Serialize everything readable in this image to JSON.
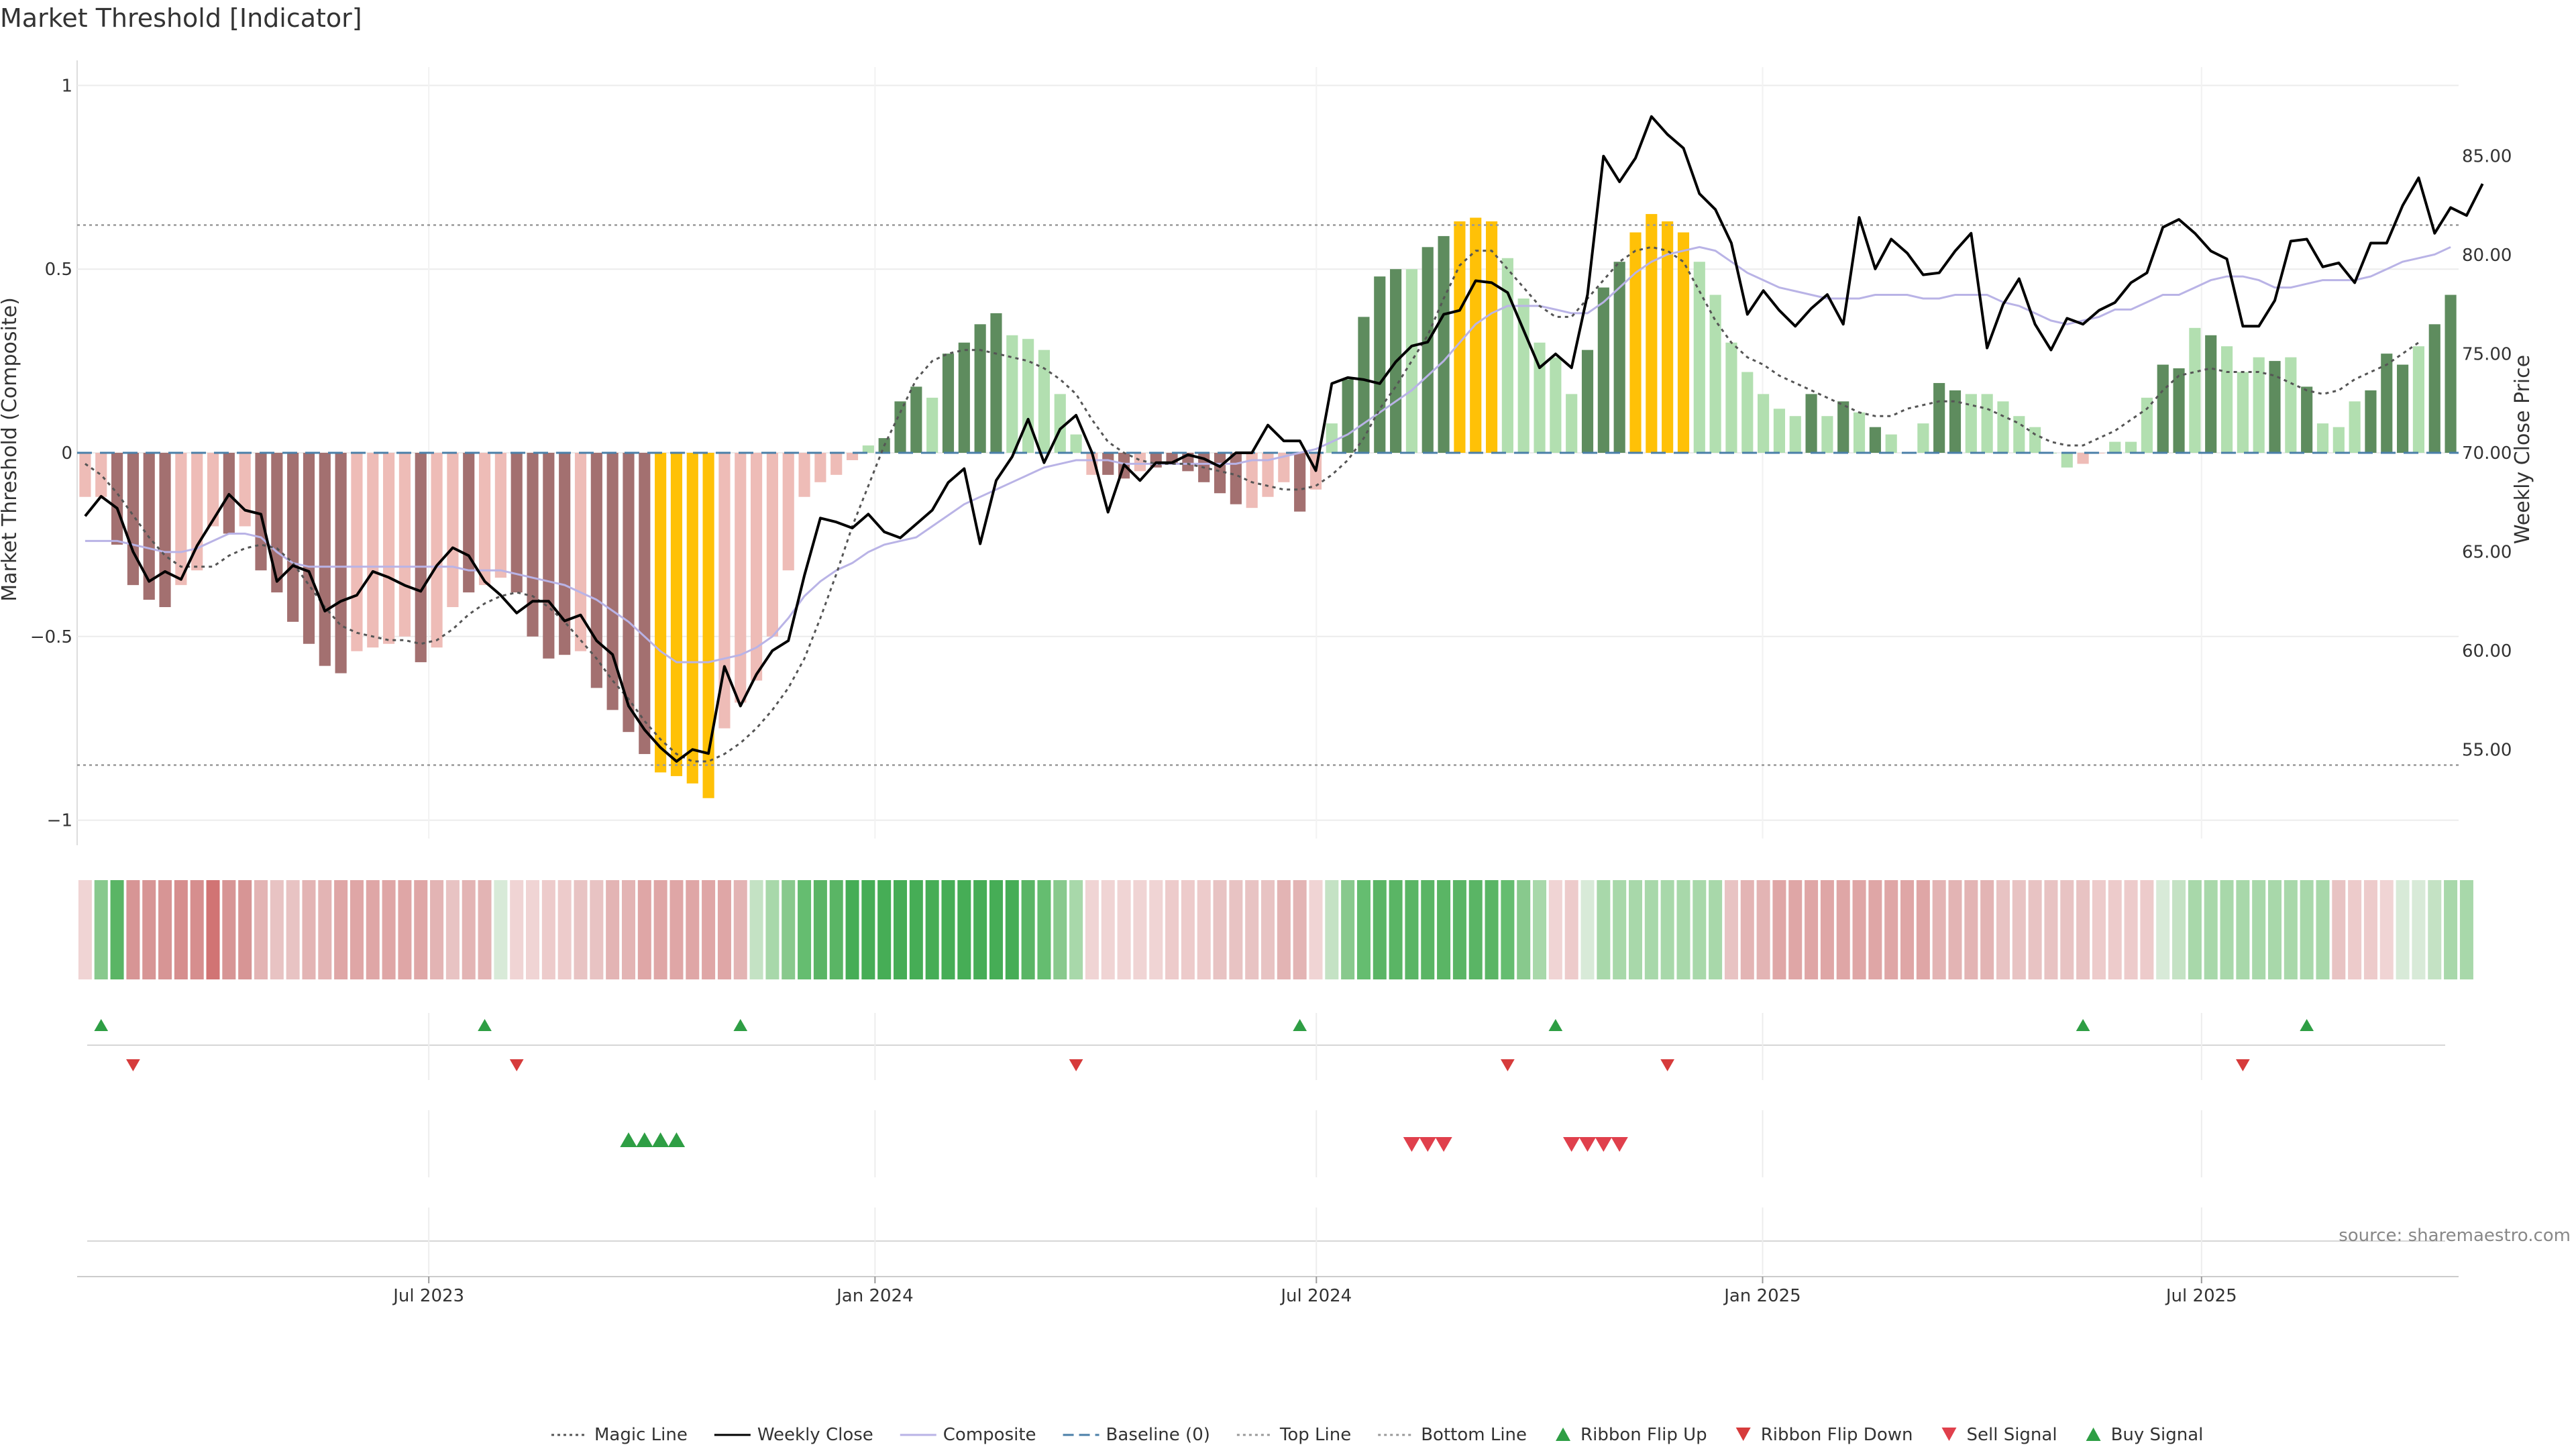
{
  "chart_data": {
    "type": "bar+line",
    "title": "Market Threshold [Indicator]",
    "ylabel_left": "Market Threshold (Composite)",
    "ylabel_right": "Weekly Close Price",
    "source": "source: sharemaestro.com",
    "left_axis": {
      "ylim": [
        -1.05,
        1.05
      ],
      "ticks": [
        1,
        0.5,
        0,
        -0.5,
        -1
      ],
      "tick_labels": [
        "1",
        "0.5",
        "0",
        "−0.5",
        "−1"
      ]
    },
    "right_axis": {
      "ylim": [
        50.5,
        89.5
      ],
      "ticks": [
        85,
        80,
        75,
        70,
        65,
        60,
        55
      ],
      "tick_labels": [
        "85.00",
        "80.00",
        "75.00",
        "70.00",
        "65.00",
        "60.00",
        "55.00"
      ]
    },
    "x_axis": {
      "start": "2023-02-06",
      "end": "2025-10-15",
      "ticks": [
        {
          "label": "Jul 2023",
          "date": "2023-07-01"
        },
        {
          "label": "Jan 2024",
          "date": "2024-01-01"
        },
        {
          "label": "Jul 2024",
          "date": "2024-07-01"
        },
        {
          "label": "Jan 2025",
          "date": "2025-01-01"
        },
        {
          "label": "Jul 2025",
          "date": "2025-07-01"
        }
      ]
    },
    "top_line": 0.62,
    "bottom_line": -0.85,
    "baseline": 0,
    "composite_bars": [
      -0.12,
      -0.12,
      -0.25,
      -0.36,
      -0.4,
      -0.42,
      -0.36,
      -0.32,
      -0.2,
      -0.22,
      -0.2,
      -0.32,
      -0.38,
      -0.46,
      -0.52,
      -0.58,
      -0.6,
      -0.54,
      -0.53,
      -0.52,
      -0.5,
      -0.57,
      -0.53,
      -0.42,
      -0.38,
      -0.36,
      -0.34,
      -0.38,
      -0.5,
      -0.56,
      -0.55,
      -0.54,
      -0.64,
      -0.7,
      -0.76,
      -0.82,
      -0.87,
      -0.88,
      -0.9,
      -0.94,
      -0.75,
      -0.68,
      -0.62,
      -0.5,
      -0.32,
      -0.12,
      -0.08,
      -0.06,
      -0.02,
      0.02,
      0.04,
      0.14,
      0.18,
      0.15,
      0.27,
      0.3,
      0.35,
      0.38,
      0.32,
      0.31,
      0.28,
      0.16,
      0.05,
      -0.06,
      -0.06,
      -0.07,
      -0.05,
      -0.04,
      -0.03,
      -0.05,
      -0.08,
      -0.11,
      -0.14,
      -0.15,
      -0.12,
      -0.08,
      -0.16,
      -0.1,
      0.08,
      0.2,
      0.37,
      0.48,
      0.5,
      0.5,
      0.56,
      0.59,
      0.63,
      0.64,
      0.63,
      0.53,
      0.42,
      0.3,
      0.26,
      0.16,
      0.28,
      0.45,
      0.52,
      0.6,
      0.65,
      0.63,
      0.6,
      0.52,
      0.43,
      0.3,
      0.22,
      0.16,
      0.12,
      0.1,
      0.16,
      0.1,
      0.14,
      0.11,
      0.07,
      0.05,
      0.0,
      0.08,
      0.19,
      0.17,
      0.16,
      0.16,
      0.14,
      0.1,
      0.07,
      0.0,
      -0.04,
      -0.03,
      0.0,
      0.03,
      0.03,
      0.15,
      0.24,
      0.23,
      0.34,
      0.32,
      0.29,
      0.22,
      0.26,
      0.25,
      0.26,
      0.18,
      0.08,
      0.07,
      0.14,
      0.17,
      0.27,
      0.24,
      0.29,
      0.35,
      0.43
    ],
    "bar_colors": [
      "#eebcb7",
      "#eebcb7",
      "#a37070",
      "#a37070",
      "#a37070",
      "#a37070",
      "#eebcb7",
      "#eebcb7",
      "#eebcb7",
      "#a37070",
      "#eebcb7",
      "#a37070",
      "#a37070",
      "#a37070",
      "#a37070",
      "#a37070",
      "#a37070",
      "#eebcb7",
      "#eebcb7",
      "#eebcb7",
      "#eebcb7",
      "#a37070",
      "#eebcb7",
      "#eebcb7",
      "#a37070",
      "#eebcb7",
      "#eebcb7",
      "#a37070",
      "#a37070",
      "#a37070",
      "#a37070",
      "#eebcb7",
      "#a37070",
      "#a37070",
      "#a37070",
      "#a37070",
      "#ffc107",
      "#ffc107",
      "#ffc107",
      "#ffc107",
      "#eebcb7",
      "#eebcb7",
      "#eebcb7",
      "#eebcb7",
      "#eebcb7",
      "#eebcb7",
      "#eebcb7",
      "#eebcb7",
      "#eebcb7",
      "#b2dfb0",
      "#5e8c5e",
      "#5e8c5e",
      "#5e8c5e",
      "#b2dfb0",
      "#5e8c5e",
      "#5e8c5e",
      "#5e8c5e",
      "#5e8c5e",
      "#b2dfb0",
      "#b2dfb0",
      "#b2dfb0",
      "#b2dfb0",
      "#b2dfb0",
      "#eebcb7",
      "#a37070",
      "#a37070",
      "#eebcb7",
      "#a37070",
      "#a37070",
      "#a37070",
      "#a37070",
      "#a37070",
      "#a37070",
      "#eebcb7",
      "#eebcb7",
      "#eebcb7",
      "#a37070",
      "#eebcb7",
      "#b2dfb0",
      "#5e8c5e",
      "#5e8c5e",
      "#5e8c5e",
      "#5e8c5e",
      "#b2dfb0",
      "#5e8c5e",
      "#5e8c5e",
      "#ffc107",
      "#ffc107",
      "#ffc107",
      "#b2dfb0",
      "#b2dfb0",
      "#b2dfb0",
      "#b2dfb0",
      "#b2dfb0",
      "#5e8c5e",
      "#5e8c5e",
      "#5e8c5e",
      "#ffc107",
      "#ffc107",
      "#ffc107",
      "#ffc107",
      "#b2dfb0",
      "#b2dfb0",
      "#b2dfb0",
      "#b2dfb0",
      "#b2dfb0",
      "#b2dfb0",
      "#b2dfb0",
      "#5e8c5e",
      "#b2dfb0",
      "#5e8c5e",
      "#b2dfb0",
      "#5e8c5e",
      "#b2dfb0",
      "#b2dfb0",
      "#b2dfb0",
      "#5e8c5e",
      "#5e8c5e",
      "#b2dfb0",
      "#b2dfb0",
      "#b2dfb0",
      "#b2dfb0",
      "#b2dfb0",
      "#b2dfb0",
      "#b2dfb0",
      "#eebcb7",
      "#eebcb7",
      "#b2dfb0",
      "#b2dfb0",
      "#b2dfb0",
      "#5e8c5e",
      "#5e8c5e",
      "#b2dfb0",
      "#5e8c5e",
      "#b2dfb0",
      "#b2dfb0",
      "#b2dfb0",
      "#5e8c5e",
      "#b2dfb0",
      "#5e8c5e",
      "#b2dfb0",
      "#b2dfb0",
      "#b2dfb0",
      "#5e8c5e",
      "#5e8c5e",
      "#5e8c5e",
      "#b2dfb0",
      "#5e8c5e",
      "#5e8c5e",
      "#5e8c5e"
    ],
    "composite_line": [
      -0.24,
      -0.24,
      -0.24,
      -0.25,
      -0.26,
      -0.27,
      -0.27,
      -0.26,
      -0.24,
      -0.22,
      -0.22,
      -0.23,
      -0.27,
      -0.3,
      -0.31,
      -0.31,
      -0.31,
      -0.31,
      -0.31,
      -0.31,
      -0.31,
      -0.31,
      -0.31,
      -0.31,
      -0.32,
      -0.32,
      -0.32,
      -0.33,
      -0.34,
      -0.35,
      -0.36,
      -0.38,
      -0.4,
      -0.43,
      -0.46,
      -0.5,
      -0.54,
      -0.57,
      -0.57,
      -0.57,
      -0.56,
      -0.55,
      -0.53,
      -0.5,
      -0.45,
      -0.39,
      -0.35,
      -0.32,
      -0.3,
      -0.27,
      -0.25,
      -0.24,
      -0.23,
      -0.2,
      -0.17,
      -0.14,
      -0.12,
      -0.1,
      -0.08,
      -0.06,
      -0.04,
      -0.03,
      -0.02,
      -0.02,
      -0.02,
      -0.03,
      -0.03,
      -0.03,
      -0.03,
      -0.03,
      -0.03,
      -0.03,
      -0.03,
      -0.02,
      -0.02,
      -0.01,
      0.0,
      0.01,
      0.03,
      0.05,
      0.08,
      0.11,
      0.14,
      0.17,
      0.21,
      0.25,
      0.3,
      0.35,
      0.38,
      0.4,
      0.4,
      0.4,
      0.39,
      0.38,
      0.38,
      0.41,
      0.45,
      0.49,
      0.52,
      0.54,
      0.55,
      0.56,
      0.55,
      0.52,
      0.49,
      0.47,
      0.45,
      0.44,
      0.43,
      0.42,
      0.42,
      0.42,
      0.43,
      0.43,
      0.43,
      0.42,
      0.42,
      0.43,
      0.43,
      0.43,
      0.41,
      0.4,
      0.38,
      0.36,
      0.35,
      0.36,
      0.37,
      0.39,
      0.39,
      0.41,
      0.43,
      0.43,
      0.45,
      0.47,
      0.48,
      0.48,
      0.47,
      0.45,
      0.45,
      0.46,
      0.47,
      0.47,
      0.47,
      0.48,
      0.5,
      0.52,
      0.53,
      0.54,
      0.56
    ],
    "magic_line": [
      -0.03,
      -0.06,
      -0.11,
      -0.17,
      -0.23,
      -0.28,
      -0.31,
      -0.31,
      -0.31,
      -0.28,
      -0.26,
      -0.25,
      -0.26,
      -0.3,
      -0.36,
      -0.42,
      -0.47,
      -0.49,
      -0.5,
      -0.51,
      -0.51,
      -0.52,
      -0.51,
      -0.48,
      -0.44,
      -0.41,
      -0.39,
      -0.38,
      -0.39,
      -0.42,
      -0.46,
      -0.51,
      -0.56,
      -0.62,
      -0.67,
      -0.73,
      -0.78,
      -0.82,
      -0.84,
      -0.84,
      -0.82,
      -0.79,
      -0.75,
      -0.7,
      -0.64,
      -0.56,
      -0.45,
      -0.33,
      -0.2,
      -0.09,
      0.02,
      0.11,
      0.2,
      0.25,
      0.27,
      0.28,
      0.28,
      0.27,
      0.26,
      0.25,
      0.23,
      0.2,
      0.16,
      0.09,
      0.03,
      0.0,
      -0.02,
      -0.03,
      -0.03,
      -0.03,
      -0.04,
      -0.05,
      -0.06,
      -0.08,
      -0.09,
      -0.1,
      -0.1,
      -0.09,
      -0.06,
      -0.02,
      0.04,
      0.12,
      0.18,
      0.25,
      0.32,
      0.42,
      0.51,
      0.55,
      0.55,
      0.5,
      0.45,
      0.4,
      0.37,
      0.37,
      0.42,
      0.47,
      0.52,
      0.55,
      0.56,
      0.55,
      0.52,
      0.44,
      0.36,
      0.3,
      0.26,
      0.24,
      0.21,
      0.19,
      0.17,
      0.15,
      0.13,
      0.11,
      0.1,
      0.1,
      0.12,
      0.13,
      0.14,
      0.14,
      0.13,
      0.12,
      0.1,
      0.08,
      0.05,
      0.03,
      0.02,
      0.02,
      0.04,
      0.06,
      0.09,
      0.12,
      0.17,
      0.21,
      0.22,
      0.23,
      0.22,
      0.22,
      0.22,
      0.21,
      0.19,
      0.17,
      0.16,
      0.17,
      0.2,
      0.22,
      0.24,
      0.27,
      0.3
    ]
  },
  "weekly_close": [
    66.8,
    67.8,
    67.2,
    65.0,
    63.5,
    64.0,
    63.6,
    65.3,
    66.6,
    67.9,
    67.1,
    66.9,
    63.5,
    64.3,
    64.0,
    62.0,
    62.5,
    62.8,
    64.0,
    63.7,
    63.3,
    63.0,
    64.3,
    65.2,
    64.8,
    63.5,
    62.8,
    61.9,
    62.5,
    62.5,
    61.5,
    61.8,
    60.5,
    59.8,
    57.2,
    56.0,
    55.1,
    54.4,
    55.0,
    54.8,
    59.2,
    57.2,
    58.8,
    60.0,
    60.5,
    63.8,
    66.7,
    66.5,
    66.2,
    66.9,
    66.0,
    65.7,
    66.4,
    67.1,
    68.5,
    69.2,
    65.4,
    68.6,
    69.8,
    71.7,
    69.5,
    71.2,
    71.9,
    70.0,
    67.0,
    69.4,
    68.6,
    69.5,
    69.5,
    69.9,
    69.7,
    69.3,
    70.0,
    70.0,
    71.4,
    70.6,
    70.6,
    69.1,
    73.5,
    73.8,
    73.7,
    73.5,
    74.6,
    75.4,
    75.6,
    77.0,
    77.2,
    78.7,
    78.6,
    78.1,
    76.2,
    74.3,
    75.0,
    74.3,
    78.0,
    85.0,
    83.7,
    84.9,
    87.0,
    86.1,
    85.4,
    83.1,
    82.3,
    80.6,
    77.0,
    78.2,
    77.2,
    76.4,
    77.3,
    78.0,
    76.5,
    81.9,
    79.3,
    80.8,
    80.1,
    79.0,
    79.1,
    80.2,
    81.1,
    75.3,
    77.5,
    78.8,
    76.5,
    75.2,
    76.8,
    76.5,
    77.2,
    77.6,
    78.6,
    79.1,
    81.4,
    81.8,
    81.1,
    80.2,
    79.8,
    76.4,
    76.4,
    77.7,
    80.7,
    80.8,
    79.4,
    79.6,
    78.6,
    80.6,
    80.6,
    82.5,
    83.9,
    81.1,
    82.4,
    82.0,
    83.6
  ],
  "signals": {
    "ribbon_flip_up": [
      1,
      25,
      41,
      76,
      92,
      125,
      139
    ],
    "ribbon_flip_down": [
      3,
      27,
      62,
      89,
      99,
      135
    ],
    "buy_signal": [
      34,
      35,
      36,
      37
    ],
    "sell_signal": [
      83,
      84,
      85,
      93,
      94,
      95,
      96
    ]
  },
  "ribbon_colors": [
    "#f0d4d4",
    "#88c98d",
    "#5ab565",
    "#d79595",
    "#d79595",
    "#d79595",
    "#d68e8e",
    "#d68e8e",
    "#d17474",
    "#d79595",
    "#d79595",
    "#e3b4b4",
    "#e8c3c3",
    "#e8c3c3",
    "#e3b4b4",
    "#e3b4b4",
    "#dfa6a6",
    "#dfa6a6",
    "#dfa6a6",
    "#dfa6a6",
    "#dfa6a6",
    "#dfa6a6",
    "#e3b4b4",
    "#e8c3c3",
    "#e3b4b4",
    "#e3b4b4",
    "#d8ead8",
    "#f0d4d4",
    "#f0d4d4",
    "#edcbcb",
    "#edcbcb",
    "#e8c3c3",
    "#e8c3c3",
    "#e3b4b4",
    "#e3b4b4",
    "#dfa6a6",
    "#dfa6a6",
    "#dfa6a6",
    "#dfa6a6",
    "#dfa6a6",
    "#dfa6a6",
    "#e3b4b4",
    "#c4e2c4",
    "#a8d8aa",
    "#88c98d",
    "#65bd70",
    "#5ab565",
    "#5ab565",
    "#46ad56",
    "#46ad56",
    "#46ad56",
    "#46ad56",
    "#46ad56",
    "#46ad56",
    "#46ad56",
    "#46ad56",
    "#46ad56",
    "#46ad56",
    "#46ad56",
    "#5ab565",
    "#65bd70",
    "#88c98d",
    "#a8d8aa",
    "#f0d4d4",
    "#f0d4d4",
    "#f0d4d4",
    "#f0d4d4",
    "#f0d4d4",
    "#edcbcb",
    "#edcbcb",
    "#edcbcb",
    "#e8c3c3",
    "#e8c3c3",
    "#e8c3c3",
    "#e8c3c3",
    "#e3b4b4",
    "#e3b4b4",
    "#f0d4d4",
    "#c4e2c4",
    "#88c98d",
    "#65bd70",
    "#5ab565",
    "#5ab565",
    "#5ab565",
    "#5ab565",
    "#5ab565",
    "#5ab565",
    "#5ab565",
    "#5ab565",
    "#65bd70",
    "#88c98d",
    "#a8d8aa",
    "#f0d4d4",
    "#edcbcb",
    "#d8ead8",
    "#a8d8aa",
    "#a8d8aa",
    "#a8d8aa",
    "#a8d8aa",
    "#a8d8aa",
    "#a8d8aa",
    "#a8d8aa",
    "#a8d8aa",
    "#e8c3c3",
    "#e3b4b4",
    "#e3b4b4",
    "#dfa6a6",
    "#dfa6a6",
    "#dfa6a6",
    "#dfa6a6",
    "#dfa6a6",
    "#dfa6a6",
    "#dfa6a6",
    "#dfa6a6",
    "#dfa6a6",
    "#dfa6a6",
    "#e3b4b4",
    "#e3b4b4",
    "#e3b4b4",
    "#e3b4b4",
    "#e8c3c3",
    "#e8c3c3",
    "#e8c3c3",
    "#e8c3c3",
    "#e8c3c3",
    "#e8c3c3",
    "#edcbcb",
    "#edcbcb",
    "#edcbcb",
    "#edcbcb",
    "#d8ead8",
    "#c4e2c4",
    "#a8d8aa",
    "#a8d8aa",
    "#a8d8aa",
    "#a8d8aa",
    "#a8d8aa",
    "#a8d8aa",
    "#a8d8aa",
    "#a8d8aa",
    "#a8d8aa",
    "#e8c3c3",
    "#edcbcb",
    "#edcbcb",
    "#f0d4d4",
    "#d8ead8",
    "#d8ead8",
    "#c4e2c4",
    "#a8d8aa",
    "#a8d8aa"
  ],
  "legend": {
    "items": [
      {
        "label": "Magic Line",
        "kind": "line",
        "color": "#555555",
        "dash": "dotted"
      },
      {
        "label": "Weekly Close",
        "kind": "line",
        "color": "#000000",
        "dash": "solid"
      },
      {
        "label": "Composite",
        "kind": "line",
        "color": "#b9b3e6",
        "dash": "solid"
      },
      {
        "label": "Baseline (0)",
        "kind": "line",
        "color": "#4a7fa8",
        "dash": "dashed"
      },
      {
        "label": "Top Line",
        "kind": "line",
        "color": "#999999",
        "dash": "dotted"
      },
      {
        "label": "Bottom Line",
        "kind": "line",
        "color": "#999999",
        "dash": "dotted"
      },
      {
        "label": "Ribbon Flip Up",
        "kind": "tri-up",
        "color": "#2e9e44"
      },
      {
        "label": "Ribbon Flip Down",
        "kind": "tri-down",
        "color": "#d63b3b"
      },
      {
        "label": "Sell Signal",
        "kind": "tri-down",
        "color": "#e0404c"
      },
      {
        "label": "Buy Signal",
        "kind": "tri-up",
        "color": "#2e9e44"
      }
    ]
  }
}
